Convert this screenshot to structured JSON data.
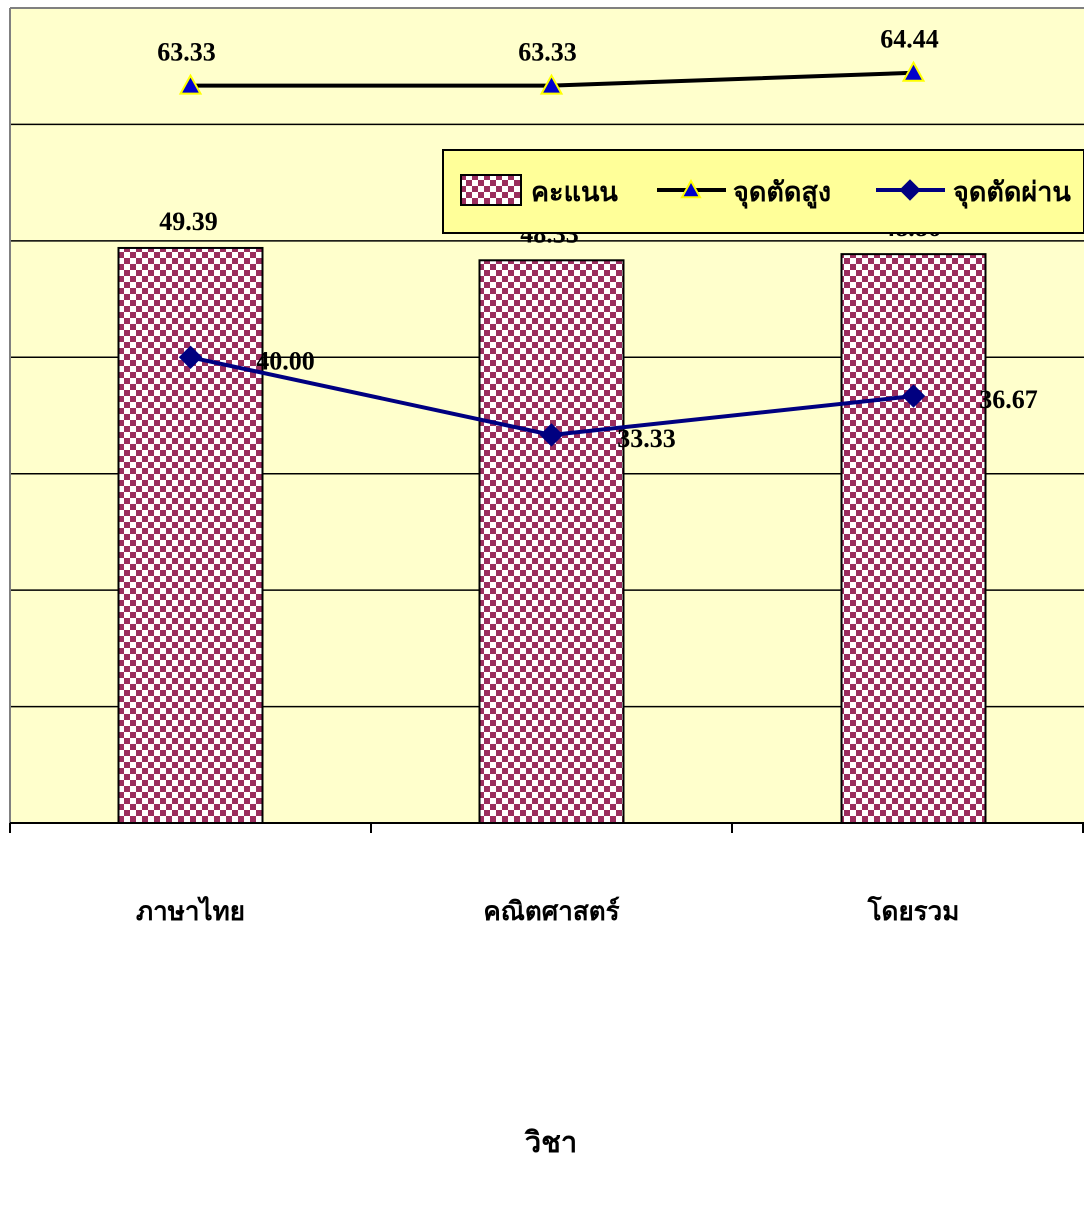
{
  "chart_data": {
    "type": "bar",
    "categories": [
      "ภาษาไทย",
      "คณิตศาสตร์",
      "โดยรวม"
    ],
    "xlabel": "วิชา",
    "ylabel": "",
    "ylim": [
      0,
      70
    ],
    "grid": true,
    "legend_position": "top-right",
    "series": [
      {
        "name": "คะแนน",
        "type": "bar",
        "values": [
          49.39,
          48.33,
          48.86
        ],
        "labels": [
          "49.39",
          "48.33",
          "48.86"
        ],
        "color": "#9B2E5E"
      },
      {
        "name": "จุดตัดสูง",
        "type": "line",
        "marker": "triangle",
        "values": [
          63.33,
          63.33,
          64.44
        ],
        "labels": [
          "63.33",
          "63.33",
          "64.44"
        ],
        "color": "#000000",
        "marker_color": "#0000CC"
      },
      {
        "name": "จุดตัดผ่าน",
        "type": "line",
        "marker": "diamond",
        "values": [
          40.0,
          33.33,
          36.67
        ],
        "labels": [
          "40.00",
          "33.33",
          "36.67"
        ],
        "color": "#000080",
        "marker_color": "#000080"
      }
    ],
    "colors": {
      "plot_background": "#FFFFCC",
      "legend_background": "#FFFF99",
      "gridline": "#000000",
      "bar_pattern": "#9B2E5E"
    }
  }
}
